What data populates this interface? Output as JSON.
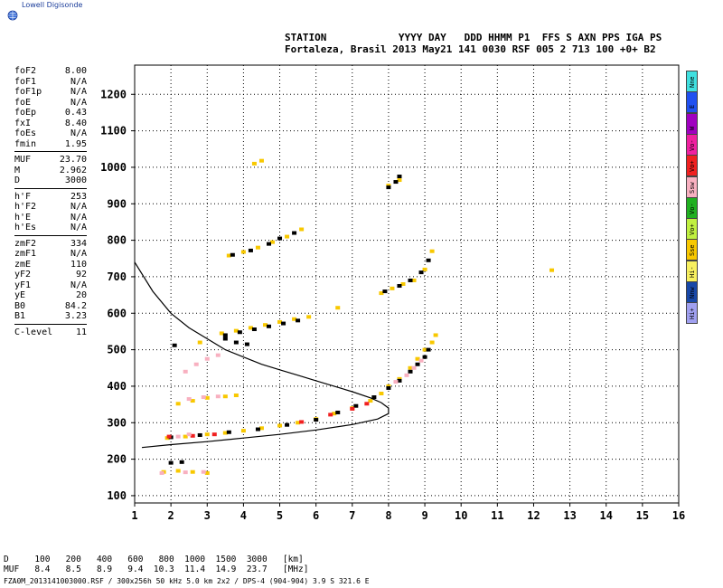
{
  "app": {
    "logo_text": "Lowell Digisonde",
    "logo_icon": "globe-icon"
  },
  "header": {
    "line1": "STATION            YYYY DAY   DDD HHMM P1  FFS S AXN PPS IGA PS",
    "line2": "Fortaleza, Brasil 2013 May21 141 0030 RSF 005 2 713 100 +0+ B2"
  },
  "params_group1": [
    {
      "name": "foF2",
      "value": "8.00"
    },
    {
      "name": "foF1",
      "value": "N/A"
    },
    {
      "name": "foF1p",
      "value": "N/A"
    },
    {
      "name": "foE",
      "value": "N/A"
    },
    {
      "name": "foEp",
      "value": "0.43"
    },
    {
      "name": "fxI",
      "value": "8.40"
    },
    {
      "name": "foEs",
      "value": "N/A"
    },
    {
      "name": "fmin",
      "value": "1.95"
    }
  ],
  "params_group2": [
    {
      "name": "MUF",
      "value": "23.70"
    },
    {
      "name": "M",
      "value": "2.962"
    },
    {
      "name": "D",
      "value": "3000"
    }
  ],
  "params_group3": [
    {
      "name": "h'F",
      "value": "253"
    },
    {
      "name": "h'F2",
      "value": "N/A"
    },
    {
      "name": "h'E",
      "value": "N/A"
    },
    {
      "name": "h'Es",
      "value": "N/A"
    }
  ],
  "params_group4": [
    {
      "name": "zmF2",
      "value": "334"
    },
    {
      "name": "zmF1",
      "value": "N/A"
    },
    {
      "name": "zmE",
      "value": "110"
    },
    {
      "name": "yF2",
      "value": "92"
    },
    {
      "name": "yF1",
      "value": "N/A"
    },
    {
      "name": "yE",
      "value": "20"
    },
    {
      "name": "B0",
      "value": "84.2"
    },
    {
      "name": "B1",
      "value": "3.23"
    }
  ],
  "params_group5": [
    {
      "name": "C-level",
      "value": "11"
    }
  ],
  "legend": [
    {
      "label": "Nne",
      "color": "#40e0e0"
    },
    {
      "label": "E",
      "color": "#2050f0"
    },
    {
      "label": "W",
      "color": "#a000c0"
    },
    {
      "label": "Vo-",
      "color": "#f020a0"
    },
    {
      "label": "Vo+",
      "color": "#f02020"
    },
    {
      "label": "Ssw",
      "color": "#f8b0c0"
    },
    {
      "label": "Vo-",
      "color": "#20b020"
    },
    {
      "label": "Vo+",
      "color": "#c0f040"
    },
    {
      "label": "Sse",
      "color": "#f8c800"
    },
    {
      "label": "Hi-",
      "color": "#f8f060"
    },
    {
      "label": "Nnw",
      "color": "#1848a8"
    },
    {
      "label": "Hi+",
      "color": "#a0a0f0"
    }
  ],
  "muf_table": {
    "row1": "D     100   200   400   600   800  1000  1500  3000   [km]",
    "row2": "MUF   8.4   8.5   8.9   9.4  10.3  11.4  14.9  23.7   [MHz]"
  },
  "footer": "FZA0M_2013141003000.RSF / 300x256h 50 kHz 5.0 km 2x2 / DPS-4 (904-904)  3.9 S 321.6 E",
  "chart_data": {
    "type": "scatter",
    "xlim": [
      1,
      16
    ],
    "ylim": [
      80,
      1280
    ],
    "x_ticks": [
      1,
      2,
      3,
      4,
      5,
      6,
      7,
      8,
      9,
      10,
      11,
      12,
      13,
      14,
      15,
      16
    ],
    "y_ticks": [
      100,
      200,
      300,
      400,
      500,
      600,
      700,
      800,
      900,
      1000,
      1100,
      1200
    ],
    "grid": true,
    "profile_curve": [
      [
        1.0,
        740
      ],
      [
        1.5,
        660
      ],
      [
        2.0,
        600
      ],
      [
        2.5,
        560
      ],
      [
        3.0,
        530
      ],
      [
        3.5,
        500
      ],
      [
        4.0,
        480
      ],
      [
        4.5,
        460
      ],
      [
        5.0,
        445
      ],
      [
        5.5,
        430
      ],
      [
        6.0,
        415
      ],
      [
        6.5,
        400
      ],
      [
        7.0,
        385
      ],
      [
        7.5,
        368
      ],
      [
        7.8,
        355
      ],
      [
        8.0,
        340
      ],
      [
        8.0,
        325
      ],
      [
        7.7,
        310
      ],
      [
        7.0,
        295
      ],
      [
        6.0,
        280
      ],
      [
        5.0,
        268
      ],
      [
        4.0,
        258
      ],
      [
        3.0,
        248
      ],
      [
        2.0,
        240
      ],
      [
        1.2,
        232
      ]
    ],
    "traces": [
      {
        "color": "#f8c800",
        "points": [
          [
            1.9,
            258
          ],
          [
            2.4,
            262
          ],
          [
            3.0,
            268
          ],
          [
            3.5,
            272
          ],
          [
            4.0,
            278
          ],
          [
            4.5,
            285
          ],
          [
            5.0,
            292
          ],
          [
            5.5,
            300
          ],
          [
            6.0,
            310
          ],
          [
            6.5,
            325
          ],
          [
            7.0,
            340
          ],
          [
            7.5,
            360
          ],
          [
            7.8,
            380
          ],
          [
            8.0,
            400
          ],
          [
            8.3,
            420
          ],
          [
            8.6,
            450
          ],
          [
            8.8,
            475
          ],
          [
            9.0,
            500
          ],
          [
            9.2,
            520
          ],
          [
            9.3,
            540
          ]
        ]
      },
      {
        "color": "#000000",
        "points": [
          [
            2.0,
            260
          ],
          [
            2.8,
            266
          ],
          [
            3.6,
            274
          ],
          [
            4.4,
            282
          ],
          [
            5.2,
            294
          ],
          [
            6.0,
            308
          ],
          [
            6.6,
            328
          ],
          [
            7.1,
            346
          ],
          [
            7.6,
            370
          ],
          [
            8.0,
            395
          ],
          [
            8.3,
            415
          ],
          [
            8.6,
            440
          ],
          [
            8.8,
            460
          ],
          [
            9.0,
            480
          ],
          [
            9.1,
            500
          ]
        ]
      },
      {
        "color": "#f02020",
        "points": [
          [
            1.95,
            262
          ],
          [
            2.6,
            264
          ],
          [
            3.2,
            268
          ],
          [
            5.6,
            302
          ],
          [
            6.4,
            322
          ],
          [
            7.0,
            338
          ],
          [
            7.4,
            352
          ]
        ]
      },
      {
        "color": "#f8b0c0",
        "points": [
          [
            2.2,
            262
          ],
          [
            2.5,
            268
          ],
          [
            8.2,
            412
          ],
          [
            8.5,
            430
          ],
          [
            8.7,
            450
          ],
          [
            8.9,
            470
          ]
        ]
      },
      {
        "color": "#f8c800",
        "points": [
          [
            3.4,
            545
          ],
          [
            3.8,
            552
          ],
          [
            4.2,
            560
          ],
          [
            4.6,
            568
          ],
          [
            5.0,
            576
          ],
          [
            5.4,
            584
          ],
          [
            5.8,
            590
          ]
        ]
      },
      {
        "color": "#000000",
        "points": [
          [
            3.5,
            540
          ],
          [
            3.9,
            548
          ],
          [
            4.3,
            556
          ],
          [
            4.7,
            564
          ],
          [
            5.1,
            572
          ],
          [
            5.5,
            580
          ]
        ]
      },
      {
        "color": "#f8c800",
        "points": [
          [
            3.6,
            758
          ],
          [
            4.0,
            768
          ],
          [
            4.4,
            780
          ],
          [
            4.8,
            795
          ],
          [
            5.2,
            810
          ],
          [
            5.6,
            830
          ]
        ]
      },
      {
        "color": "#000000",
        "points": [
          [
            3.7,
            760
          ],
          [
            4.2,
            772
          ],
          [
            4.7,
            790
          ],
          [
            5.0,
            805
          ],
          [
            5.4,
            820
          ]
        ]
      },
      {
        "color": "#f8c800",
        "points": [
          [
            7.8,
            655
          ],
          [
            8.1,
            668
          ],
          [
            8.4,
            680
          ],
          [
            8.7,
            690
          ],
          [
            9.0,
            720
          ],
          [
            9.2,
            770
          ]
        ]
      },
      {
        "color": "#000000",
        "points": [
          [
            7.9,
            660
          ],
          [
            8.3,
            675
          ],
          [
            8.6,
            690
          ],
          [
            8.9,
            712
          ],
          [
            9.1,
            745
          ]
        ]
      },
      {
        "color": "#f8b0c0",
        "points": [
          [
            2.4,
            440
          ],
          [
            2.7,
            460
          ],
          [
            3.0,
            475
          ],
          [
            3.3,
            485
          ]
        ]
      },
      {
        "color": "#f8c800",
        "points": [
          [
            2.2,
            352
          ],
          [
            2.6,
            360
          ],
          [
            3.0,
            368
          ],
          [
            3.5,
            372
          ],
          [
            3.8,
            375
          ]
        ]
      },
      {
        "color": "#f8b0c0",
        "points": [
          [
            2.5,
            365
          ],
          [
            2.9,
            370
          ],
          [
            3.3,
            372
          ]
        ]
      },
      {
        "color": "#f8c800",
        "points": [
          [
            1.8,
            165
          ],
          [
            2.2,
            168
          ],
          [
            2.6,
            165
          ],
          [
            3.0,
            162
          ]
        ]
      },
      {
        "color": "#f8b0c0",
        "points": [
          [
            1.75,
            162
          ],
          [
            2.4,
            164
          ],
          [
            2.9,
            165
          ]
        ]
      },
      {
        "color": "#000000",
        "points": [
          [
            2.0,
            190
          ],
          [
            2.3,
            192
          ],
          [
            3.5,
            530
          ],
          [
            3.8,
            520
          ],
          [
            4.1,
            515
          ]
        ]
      },
      {
        "color": "#f8c800",
        "points": [
          [
            4.3,
            1010
          ],
          [
            4.5,
            1018
          ],
          [
            8.0,
            950
          ],
          [
            8.3,
            965
          ],
          [
            12.5,
            718
          ],
          [
            2.8,
            520
          ],
          [
            6.6,
            615
          ]
        ]
      },
      {
        "color": "#000000",
        "points": [
          [
            8.0,
            945
          ],
          [
            8.2,
            960
          ],
          [
            8.3,
            975
          ],
          [
            2.1,
            512
          ]
        ]
      }
    ]
  }
}
